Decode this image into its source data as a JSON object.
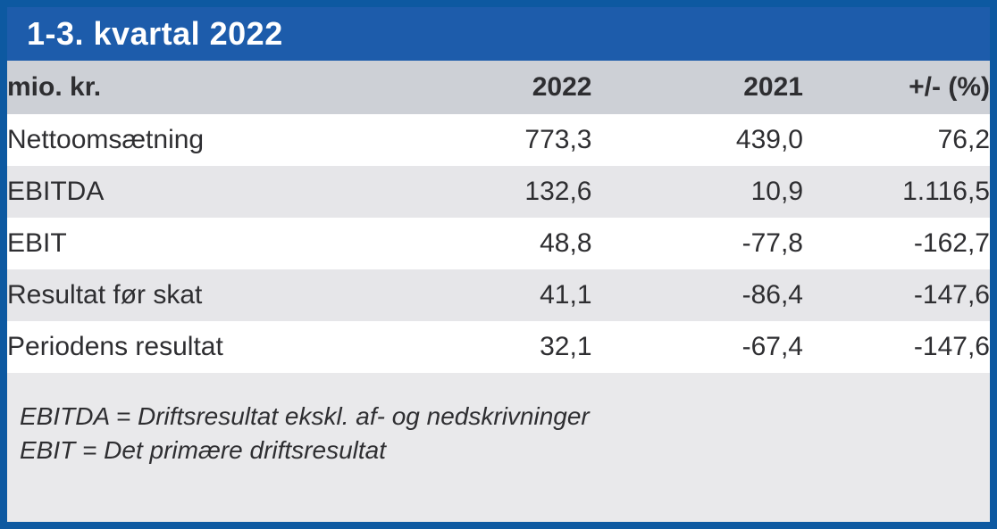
{
  "title": "1-3. kvartal 2022",
  "table": {
    "unit_label": "mio. kr.",
    "columns": {
      "col1": "2022",
      "col2": "2021",
      "col3": "+/- (%)"
    },
    "rows": [
      {
        "label": "Nettoomsætning",
        "v2022": "773,3",
        "v2021": "439,0",
        "delta": "76,2"
      },
      {
        "label": "EBITDA",
        "v2022": "132,6",
        "v2021": "10,9",
        "delta": "1.116,5"
      },
      {
        "label": "EBIT",
        "v2022": "48,8",
        "v2021": "-77,8",
        "delta": "-162,7"
      },
      {
        "label": "Resultat før skat",
        "v2022": "41,1",
        "v2021": "-86,4",
        "delta": "-147,6"
      },
      {
        "label": "Periodens resultat",
        "v2022": "32,1",
        "v2021": "-67,4",
        "delta": "-147,6"
      }
    ]
  },
  "footnotes": {
    "line1": "EBITDA = Driftsresultat ekskl. af- og nedskrivninger",
    "line2": "EBIT = Det primære driftsresultat"
  },
  "colors": {
    "border_blue": "#0d59a1",
    "titlebar_blue": "#1d5cab",
    "header_row_gray": "#cdd0d6",
    "alt_row_gray": "#e6e6e9",
    "footer_gray": "#e9e9eb",
    "text_dark": "#2e2e31",
    "title_text": "#ffffff"
  },
  "chart_data": {
    "type": "table",
    "title": "1-3. kvartal 2022",
    "unit": "mio. kr.",
    "columns": [
      "2022",
      "2021",
      "+/- (%)"
    ],
    "rows": [
      {
        "label": "Nettoomsætning",
        "2022": 773.3,
        "2021": 439.0,
        "change_pct": 76.2
      },
      {
        "label": "EBITDA",
        "2022": 132.6,
        "2021": 10.9,
        "change_pct": 1116.5
      },
      {
        "label": "EBIT",
        "2022": 48.8,
        "2021": -77.8,
        "change_pct": -162.7
      },
      {
        "label": "Resultat før skat",
        "2022": 41.1,
        "2021": -86.4,
        "change_pct": -147.6
      },
      {
        "label": "Periodens resultat",
        "2022": 32.1,
        "2021": -67.4,
        "change_pct": -147.6
      }
    ],
    "notes": [
      "EBITDA = Driftsresultat ekskl. af- og nedskrivninger",
      "EBIT = Det primære driftsresultat"
    ]
  }
}
